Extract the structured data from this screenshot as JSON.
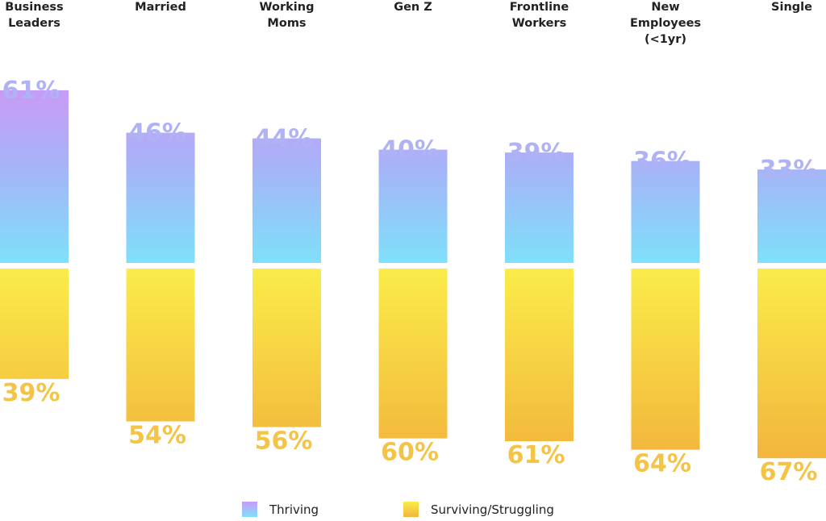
{
  "chart_data": {
    "type": "bar",
    "subtype": "diverging-stacked",
    "title": "",
    "xlabel": "",
    "ylabel": "",
    "categories": [
      "Business Leaders",
      "Married",
      "Working Moms",
      "Gen Z",
      "Frontline Workers",
      "New Employees (<1yr)",
      "Single"
    ],
    "category_label_lines": [
      [
        "Business",
        "Leaders"
      ],
      [
        "Married"
      ],
      [
        "Working",
        "Moms"
      ],
      [
        "Gen Z"
      ],
      [
        "Frontline",
        "Workers"
      ],
      [
        "New",
        "Employees",
        "(<1yr)"
      ],
      [
        "Single"
      ]
    ],
    "series": [
      {
        "name": "Thriving",
        "direction": "up",
        "values": [
          61,
          46,
          44,
          40,
          39,
          36,
          33
        ],
        "labels": [
          "61%",
          "46%",
          "44%",
          "40%",
          "39%",
          "36%",
          "33%"
        ],
        "gradient": [
          "#C79CF6",
          "#7FE0FA"
        ],
        "label_color": "#AFB3F5"
      },
      {
        "name": "Surviving/Struggling",
        "direction": "down",
        "values": [
          39,
          54,
          56,
          60,
          61,
          64,
          67
        ],
        "labels": [
          "39%",
          "54%",
          "56%",
          "60%",
          "61%",
          "64%",
          "67%"
        ],
        "gradient": [
          "#FBEA4A",
          "#F2B63C"
        ],
        "label_color": "#F3C445"
      }
    ],
    "ylim": [
      0,
      100
    ],
    "grid": false,
    "legend_position": "bottom-center"
  },
  "legend": [
    {
      "label": "Thriving"
    },
    {
      "label": "Surviving/Struggling"
    }
  ]
}
